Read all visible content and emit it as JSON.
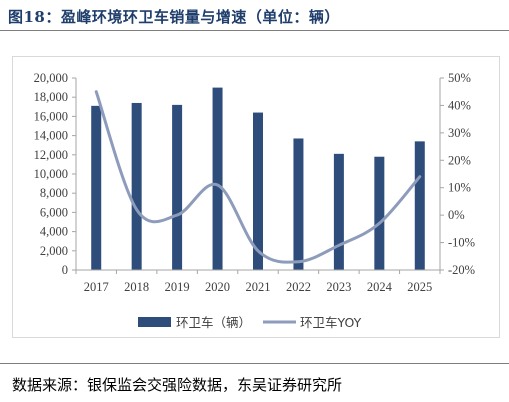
{
  "figure": {
    "title": "图18：盈峰环境环卫车销量与增速（单位：辆）",
    "source": "数据来源：银保监会交强险数据，东吴证券研究所"
  },
  "colors": {
    "bar": "#2e4d7b",
    "line": "#8e9cbb",
    "title": "#1f3e6c"
  },
  "chart_data": {
    "type": "bar",
    "categories": [
      "2017",
      "2018",
      "2019",
      "2020",
      "2021",
      "2022",
      "2023",
      "2024",
      "2025"
    ],
    "series": [
      {
        "name": "环卫车（辆）",
        "type": "bar",
        "axis": "left",
        "values": [
          17100,
          17400,
          17200,
          19000,
          16400,
          13700,
          12100,
          11800,
          13400
        ]
      },
      {
        "name": "环卫车YOY",
        "type": "line",
        "axis": "right",
        "smooth": true,
        "values": [
          45,
          2,
          0,
          11,
          -13,
          -17,
          -11,
          -3,
          14
        ]
      }
    ],
    "y_left": {
      "lim": [
        0,
        20000
      ],
      "ticks": [
        0,
        2000,
        4000,
        6000,
        8000,
        10000,
        12000,
        14000,
        16000,
        18000,
        20000
      ],
      "tick_labels": [
        "0",
        "2,000",
        "4,000",
        "6,000",
        "8,000",
        "10,000",
        "12,000",
        "14,000",
        "16,000",
        "18,000",
        "20,000"
      ]
    },
    "y_right": {
      "lim": [
        -20,
        50
      ],
      "ticks": [
        -20,
        -10,
        0,
        10,
        20,
        30,
        40,
        50
      ],
      "tick_labels": [
        "-20%",
        "-10%",
        "0%",
        "10%",
        "20%",
        "30%",
        "40%",
        "50%"
      ]
    },
    "grid": false,
    "legend": "bottom",
    "title": "",
    "xlabel": "",
    "ylabel": ""
  }
}
